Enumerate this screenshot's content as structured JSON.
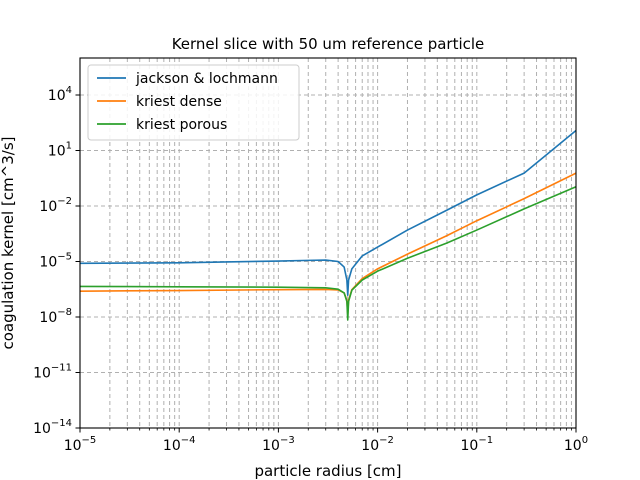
{
  "chart_data": {
    "type": "line",
    "title": "Kernel slice with 50 um reference particle",
    "xlabel": "particle radius [cm]",
    "ylabel": "coagulation kernel [cm^3/s]",
    "xscale": "log",
    "yscale": "log",
    "xlim": [
      1e-05,
      1
    ],
    "ylim": [
      1e-14,
      1000000.0
    ],
    "grid": true,
    "legend_position": "top-left",
    "xticks": [
      {
        "mant": "10",
        "exp": "−5",
        "value": 1e-05
      },
      {
        "mant": "10",
        "exp": "−4",
        "value": 0.0001
      },
      {
        "mant": "10",
        "exp": "−3",
        "value": 0.001
      },
      {
        "mant": "10",
        "exp": "−2",
        "value": 0.01
      },
      {
        "mant": "10",
        "exp": "−1",
        "value": 0.1
      },
      {
        "mant": "10",
        "exp": "0",
        "value": 1
      }
    ],
    "yticks": [
      {
        "mant": "10",
        "exp": "−14",
        "value": 1e-14
      },
      {
        "mant": "10",
        "exp": "−11",
        "value": 1e-11
      },
      {
        "mant": "10",
        "exp": "−8",
        "value": 1e-08
      },
      {
        "mant": "10",
        "exp": "−5",
        "value": 1e-05
      },
      {
        "mant": "10",
        "exp": "−2",
        "value": 0.01
      },
      {
        "mant": "10",
        "exp": "1",
        "value": 10
      },
      {
        "mant": "10",
        "exp": "4",
        "value": 10000.0
      }
    ],
    "series": [
      {
        "name": "jackson & lochmann",
        "color": "#1f77b4",
        "x": [
          1e-05,
          3e-05,
          0.0001,
          0.0003,
          0.001,
          0.002,
          0.003,
          0.004,
          0.0046,
          0.0049,
          0.005,
          0.0051,
          0.0055,
          0.007,
          0.01,
          0.02,
          0.05,
          0.1,
          0.3,
          1
        ],
        "y": [
          8e-06,
          8.2e-06,
          8.5e-06,
          9.5e-06,
          1.05e-05,
          1.15e-05,
          1.2e-05,
          1e-05,
          5e-06,
          1e-06,
          1.5e-07,
          1e-06,
          4e-06,
          2e-05,
          6e-05,
          0.0005,
          0.006,
          0.04,
          0.6,
          120.0
        ]
      },
      {
        "name": "kriest dense",
        "color": "#ff7f0e",
        "x": [
          1e-05,
          0.0001,
          0.001,
          0.003,
          0.004,
          0.0046,
          0.0049,
          0.005,
          0.0051,
          0.0055,
          0.007,
          0.01,
          0.02,
          0.05,
          0.1,
          0.3,
          1
        ],
        "y": [
          2.5e-07,
          2.7e-07,
          3e-07,
          3.1e-07,
          2.9e-07,
          2e-07,
          8e-08,
          1.5e-08,
          8e-08,
          3e-07,
          1.2e-06,
          4e-06,
          2.5e-05,
          0.00025,
          0.0016,
          0.025,
          0.6
        ]
      },
      {
        "name": "kriest porous",
        "color": "#2ca02c",
        "x": [
          1e-05,
          0.0001,
          0.001,
          0.003,
          0.004,
          0.0046,
          0.0049,
          0.005,
          0.0051,
          0.0055,
          0.007,
          0.01,
          0.02,
          0.05,
          0.1,
          0.3,
          1
        ],
        "y": [
          4.5e-07,
          4.3e-07,
          4.1e-07,
          3.8e-07,
          3.2e-07,
          2e-07,
          7e-08,
          7e-09,
          7e-08,
          2.8e-07,
          1e-06,
          3e-06,
          1.5e-05,
          0.0001,
          0.0005,
          0.007,
          0.11
        ]
      }
    ]
  }
}
